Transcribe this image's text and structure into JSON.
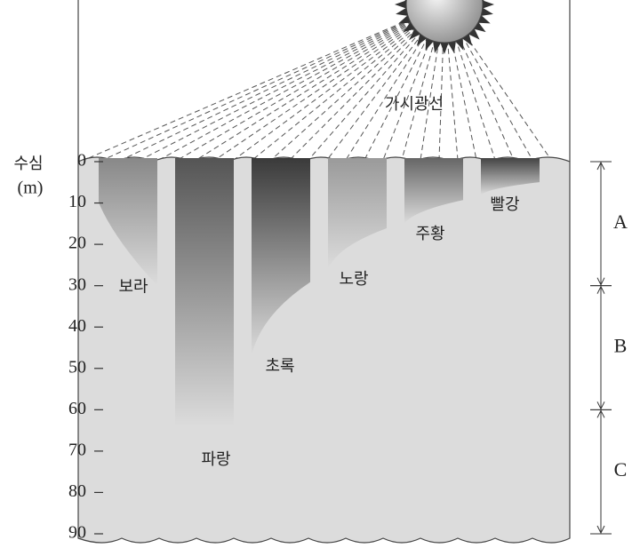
{
  "light_label": "가시광선",
  "axis": {
    "title": "수심",
    "unit": "(m)",
    "lim": [
      0,
      90
    ],
    "ticks": [
      0,
      10,
      20,
      30,
      40,
      50,
      60,
      70,
      80,
      90
    ]
  },
  "bands": [
    {
      "name": "보라",
      "depth": 30
    },
    {
      "name": "파랑",
      "depth": 64
    },
    {
      "name": "초록",
      "depth": 47
    },
    {
      "name": "노랑",
      "depth": 26
    },
    {
      "name": "주황",
      "depth": 15
    },
    {
      "name": "빨강",
      "depth": 8
    }
  ],
  "zones": [
    {
      "label": "A",
      "from": 0,
      "to": 30
    },
    {
      "label": "B",
      "from": 30,
      "to": 60
    },
    {
      "label": "C",
      "from": 60,
      "to": 90
    }
  ]
}
